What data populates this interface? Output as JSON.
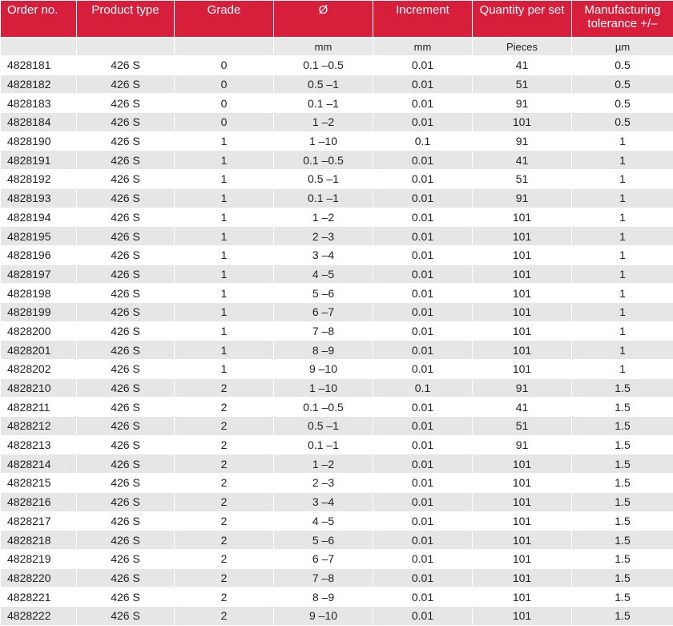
{
  "table": {
    "headers": [
      "Order no.",
      "Product type",
      "Grade",
      "Ø",
      "Increment",
      "Quantity per set",
      "Manufacturing tolerance +/–"
    ],
    "units": [
      "",
      "",
      "",
      "mm",
      "mm",
      "Pieces",
      "µm"
    ],
    "rows": [
      [
        "4828181",
        "426 S",
        "0",
        "0.1 –0.5",
        "0.01",
        "41",
        "0.5"
      ],
      [
        "4828182",
        "426 S",
        "0",
        "0.5 –1",
        "0.01",
        "51",
        "0.5"
      ],
      [
        "4828183",
        "426 S",
        "0",
        "0.1 –1",
        "0.01",
        "91",
        "0.5"
      ],
      [
        "4828184",
        "426 S",
        "0",
        "1 –2",
        "0.01",
        "101",
        "0.5"
      ],
      [
        "4828190",
        "426 S",
        "1",
        "1 –10",
        "0.1",
        "91",
        "1"
      ],
      [
        "4828191",
        "426 S",
        "1",
        "0.1 –0.5",
        "0.01",
        "41",
        "1"
      ],
      [
        "4828192",
        "426 S",
        "1",
        "0.5 –1",
        "0.01",
        "51",
        "1"
      ],
      [
        "4828193",
        "426 S",
        "1",
        "0.1 –1",
        "0.01",
        "91",
        "1"
      ],
      [
        "4828194",
        "426 S",
        "1",
        "1 –2",
        "0.01",
        "101",
        "1"
      ],
      [
        "4828195",
        "426 S",
        "1",
        "2 –3",
        "0.01",
        "101",
        "1"
      ],
      [
        "4828196",
        "426 S",
        "1",
        "3 –4",
        "0.01",
        "101",
        "1"
      ],
      [
        "4828197",
        "426 S",
        "1",
        "4 –5",
        "0.01",
        "101",
        "1"
      ],
      [
        "4828198",
        "426 S",
        "1",
        "5 –6",
        "0.01",
        "101",
        "1"
      ],
      [
        "4828199",
        "426 S",
        "1",
        "6 –7",
        "0.01",
        "101",
        "1"
      ],
      [
        "4828200",
        "426 S",
        "1",
        "7 –8",
        "0.01",
        "101",
        "1"
      ],
      [
        "4828201",
        "426 S",
        "1",
        "8 –9",
        "0.01",
        "101",
        "1"
      ],
      [
        "4828202",
        "426 S",
        "1",
        "9 –10",
        "0.01",
        "101",
        "1"
      ],
      [
        "4828210",
        "426 S",
        "2",
        "1 –10",
        "0.1",
        "91",
        "1.5"
      ],
      [
        "4828211",
        "426 S",
        "2",
        "0.1 –0.5",
        "0.01",
        "41",
        "1.5"
      ],
      [
        "4828212",
        "426 S",
        "2",
        "0.5 –1",
        "0.01",
        "51",
        "1.5"
      ],
      [
        "4828213",
        "426 S",
        "2",
        "0.1 –1",
        "0.01",
        "91",
        "1.5"
      ],
      [
        "4828214",
        "426 S",
        "2",
        "1 –2",
        "0.01",
        "101",
        "1.5"
      ],
      [
        "4828215",
        "426 S",
        "2",
        "2 –3",
        "0.01",
        "101",
        "1.5"
      ],
      [
        "4828216",
        "426 S",
        "2",
        "3 –4",
        "0.01",
        "101",
        "1.5"
      ],
      [
        "4828217",
        "426 S",
        "2",
        "4 –5",
        "0.01",
        "101",
        "1.5"
      ],
      [
        "4828218",
        "426 S",
        "2",
        "5 –6",
        "0.01",
        "101",
        "1.5"
      ],
      [
        "4828219",
        "426 S",
        "2",
        "6 –7",
        "0.01",
        "101",
        "1.5"
      ],
      [
        "4828220",
        "426 S",
        "2",
        "7 –8",
        "0.01",
        "101",
        "1.5"
      ],
      [
        "4828221",
        "426 S",
        "2",
        "8 –9",
        "0.01",
        "101",
        "1.5"
      ],
      [
        "4828222",
        "426 S",
        "2",
        "9 –10",
        "0.01",
        "101",
        "1.5"
      ]
    ]
  }
}
